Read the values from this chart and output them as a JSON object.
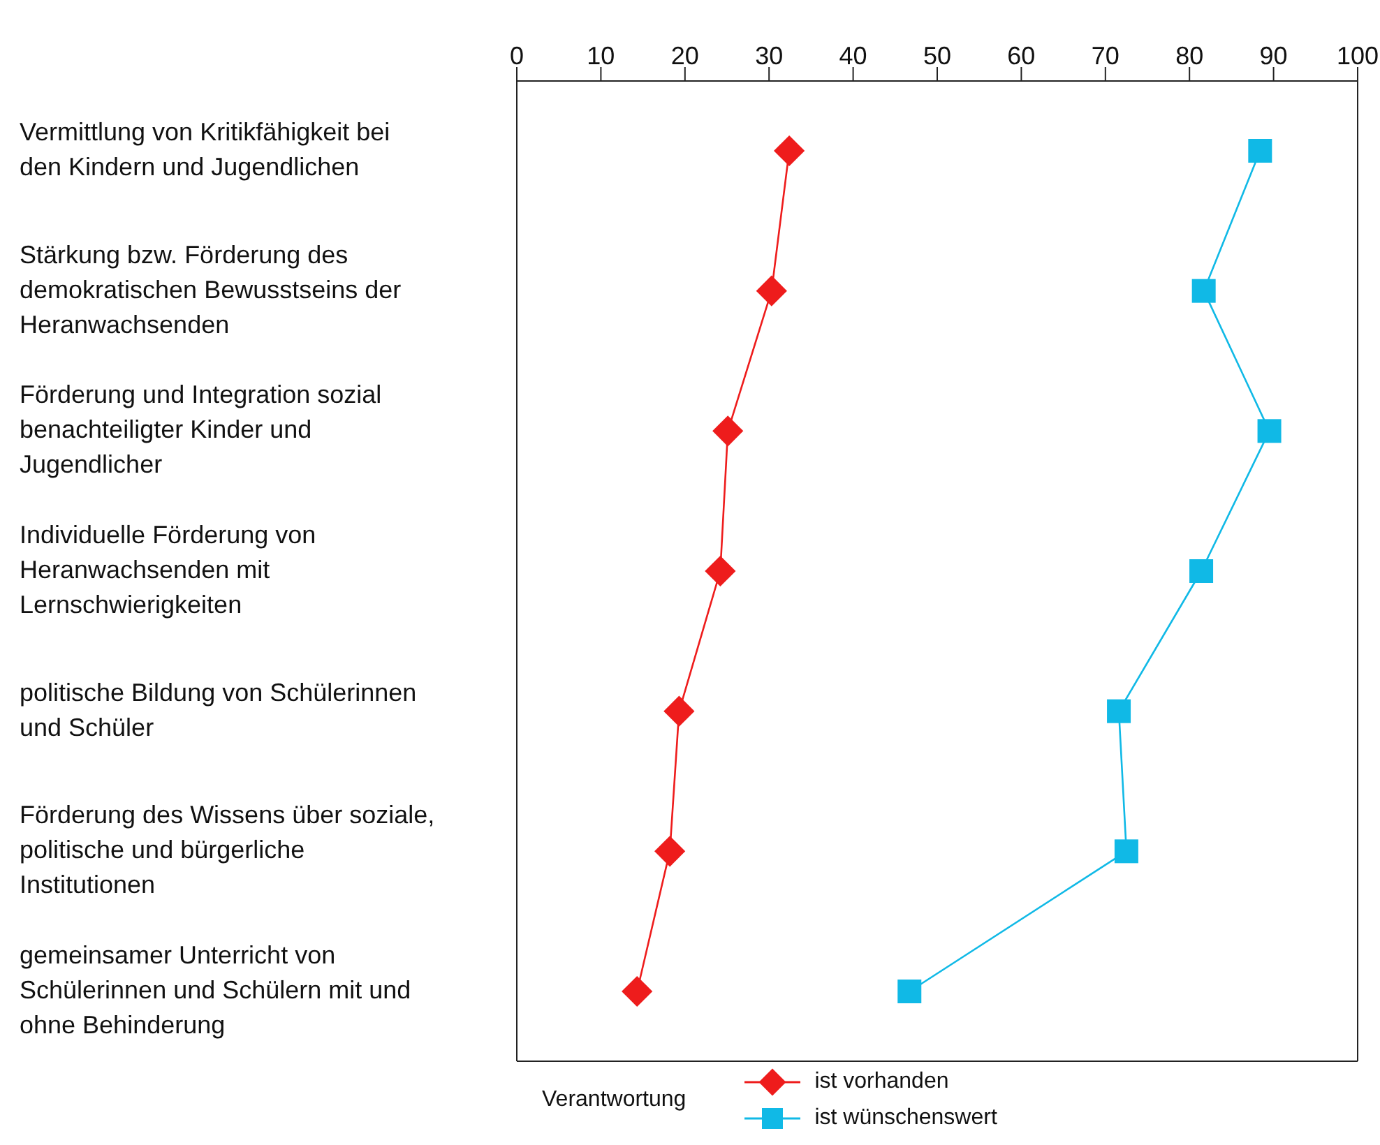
{
  "chart_data": {
    "type": "line",
    "orientation": "horizontal",
    "categories": [
      "Vermittlung von Kritikfähigkeit bei den Kindern und Jugendlichen",
      "Stärkung bzw. Förderung des demokratischen Bewusstseins der Heranwachsenden",
      "Förderung und Integration sozial benachteiligter Kinder und Jugendlicher",
      "Individuelle Förderung von Heranwachsenden mit Lernschwierigkeiten",
      "politische Bildung von Schülerinnen und Schüler",
      "Förderung des Wissens über soziale, politische und bürgerliche Institutionen",
      "gemeinsamer Unterricht von Schülerinnen und Schülern mit und ohne Behinderung"
    ],
    "series": [
      {
        "name": "ist vorhanden",
        "color": "#ee1c1c",
        "marker": "diamond",
        "values": [
          32.4,
          30.3,
          25.1,
          24.2,
          19.3,
          18.2,
          14.3
        ]
      },
      {
        "name": "ist wünschenswert",
        "color": "#10b9e6",
        "marker": "square",
        "values": [
          88.4,
          81.7,
          89.5,
          81.4,
          71.6,
          72.5,
          46.7
        ]
      }
    ],
    "xlim": [
      0,
      100
    ],
    "xticks": [
      0,
      10,
      20,
      30,
      40,
      50,
      60,
      70,
      80,
      90,
      100
    ],
    "legend": "bottom",
    "legend_title": "Verantwortung",
    "grid": false
  }
}
